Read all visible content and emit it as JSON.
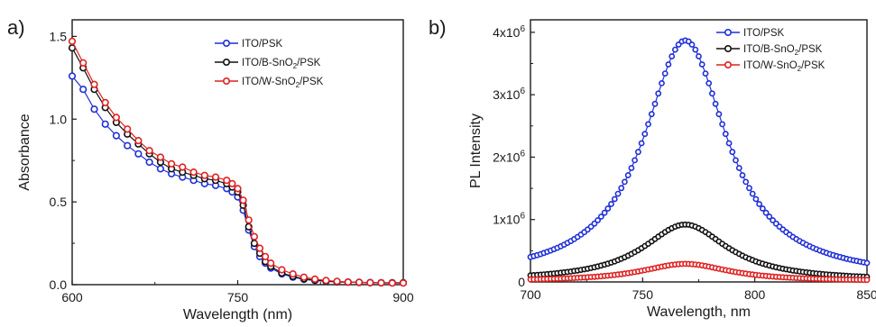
{
  "chart_data": [
    {
      "type": "scatter",
      "panel_label": "a)",
      "xlabel": "Wavelength (nm)",
      "ylabel": "Absorbance",
      "xlim": [
        600,
        900
      ],
      "ylim": [
        0.0,
        1.6
      ],
      "x_ticks": [
        600,
        750,
        900
      ],
      "x_tick_labels": [
        "600",
        "750",
        "900"
      ],
      "y_ticks": [
        0.0,
        0.5,
        1.0,
        1.5
      ],
      "y_tick_labels": [
        "0.0",
        "0.5",
        "1.0",
        "1.5"
      ],
      "grid": false,
      "legend_position": "top-right",
      "marker": "circle",
      "x": [
        600,
        610,
        620,
        630,
        640,
        650,
        660,
        670,
        680,
        690,
        700,
        710,
        720,
        730,
        740,
        745,
        750,
        755,
        760,
        765,
        770,
        775,
        780,
        790,
        800,
        810,
        820,
        830,
        840,
        850,
        860,
        870,
        880,
        890,
        900
      ],
      "series": [
        {
          "name": "ITO/PSK",
          "name_sub": "",
          "name_suffix": "",
          "color": "#1f2fd6",
          "values": [
            1.26,
            1.18,
            1.06,
            0.97,
            0.9,
            0.84,
            0.79,
            0.74,
            0.7,
            0.67,
            0.65,
            0.63,
            0.61,
            0.6,
            0.58,
            0.56,
            0.53,
            0.45,
            0.33,
            0.23,
            0.17,
            0.13,
            0.1,
            0.065,
            0.045,
            0.032,
            0.025,
            0.02,
            0.017,
            0.015,
            0.014,
            0.013,
            0.012,
            0.012,
            0.012
          ]
        },
        {
          "name": "ITO/B-SnO",
          "name_sub": "2",
          "name_suffix": "/PSK",
          "color": "#111111",
          "values": [
            1.43,
            1.31,
            1.18,
            1.07,
            0.98,
            0.91,
            0.85,
            0.79,
            0.74,
            0.7,
            0.68,
            0.66,
            0.64,
            0.63,
            0.61,
            0.59,
            0.56,
            0.48,
            0.35,
            0.25,
            0.19,
            0.14,
            0.11,
            0.07,
            0.05,
            0.035,
            0.027,
            0.021,
            0.017,
            0.015,
            0.013,
            0.012,
            0.011,
            0.011,
            0.011
          ]
        },
        {
          "name": "ITO/W-SnO",
          "name_sub": "2",
          "name_suffix": "/PSK",
          "color": "#e02020",
          "values": [
            1.47,
            1.34,
            1.21,
            1.1,
            1.01,
            0.94,
            0.87,
            0.81,
            0.77,
            0.73,
            0.71,
            0.68,
            0.66,
            0.65,
            0.63,
            0.61,
            0.58,
            0.51,
            0.39,
            0.29,
            0.22,
            0.17,
            0.13,
            0.09,
            0.065,
            0.045,
            0.033,
            0.025,
            0.02,
            0.016,
            0.014,
            0.012,
            0.011,
            0.01,
            0.01
          ]
        }
      ]
    },
    {
      "type": "scatter",
      "panel_label": "b)",
      "xlabel": "Wavelength, nm",
      "ylabel": "PL Intensity",
      "xlim": [
        700,
        850
      ],
      "ylim": [
        0,
        4200000
      ],
      "x_ticks": [
        700,
        750,
        800,
        850
      ],
      "x_tick_labels": [
        "700",
        "750",
        "800",
        "850"
      ],
      "y_ticks": [
        0,
        1000000,
        2000000,
        3000000,
        4000000
      ],
      "y_tick_labels": [
        {
          "base": "0",
          "exp": ""
        },
        {
          "base": "1x10",
          "exp": "6"
        },
        {
          "base": "2x10",
          "exp": "6"
        },
        {
          "base": "3x10",
          "exp": "6"
        },
        {
          "base": "4x10",
          "exp": "6"
        }
      ],
      "grid": false,
      "legend_position": "top-right",
      "marker": "circle",
      "peak_wavelength": 769,
      "x_range": [
        700,
        850
      ],
      "x_step": 1.5,
      "series": [
        {
          "name": "ITO/PSK",
          "name_sub": "",
          "name_suffix": "",
          "color": "#1f2fd6",
          "peak": 3870000,
          "fwhm": 45,
          "baseline": 30000
        },
        {
          "name": "ITO/B-SnO",
          "name_sub": "2",
          "name_suffix": "/PSK",
          "color": "#111111",
          "peak": 920000,
          "fwhm": 46,
          "baseline": 15000
        },
        {
          "name": "ITO/W-SnO",
          "name_sub": "2",
          "name_suffix": "/PSK",
          "color": "#e02020",
          "peak": 290000,
          "fwhm": 48,
          "baseline": 10000
        }
      ]
    }
  ]
}
